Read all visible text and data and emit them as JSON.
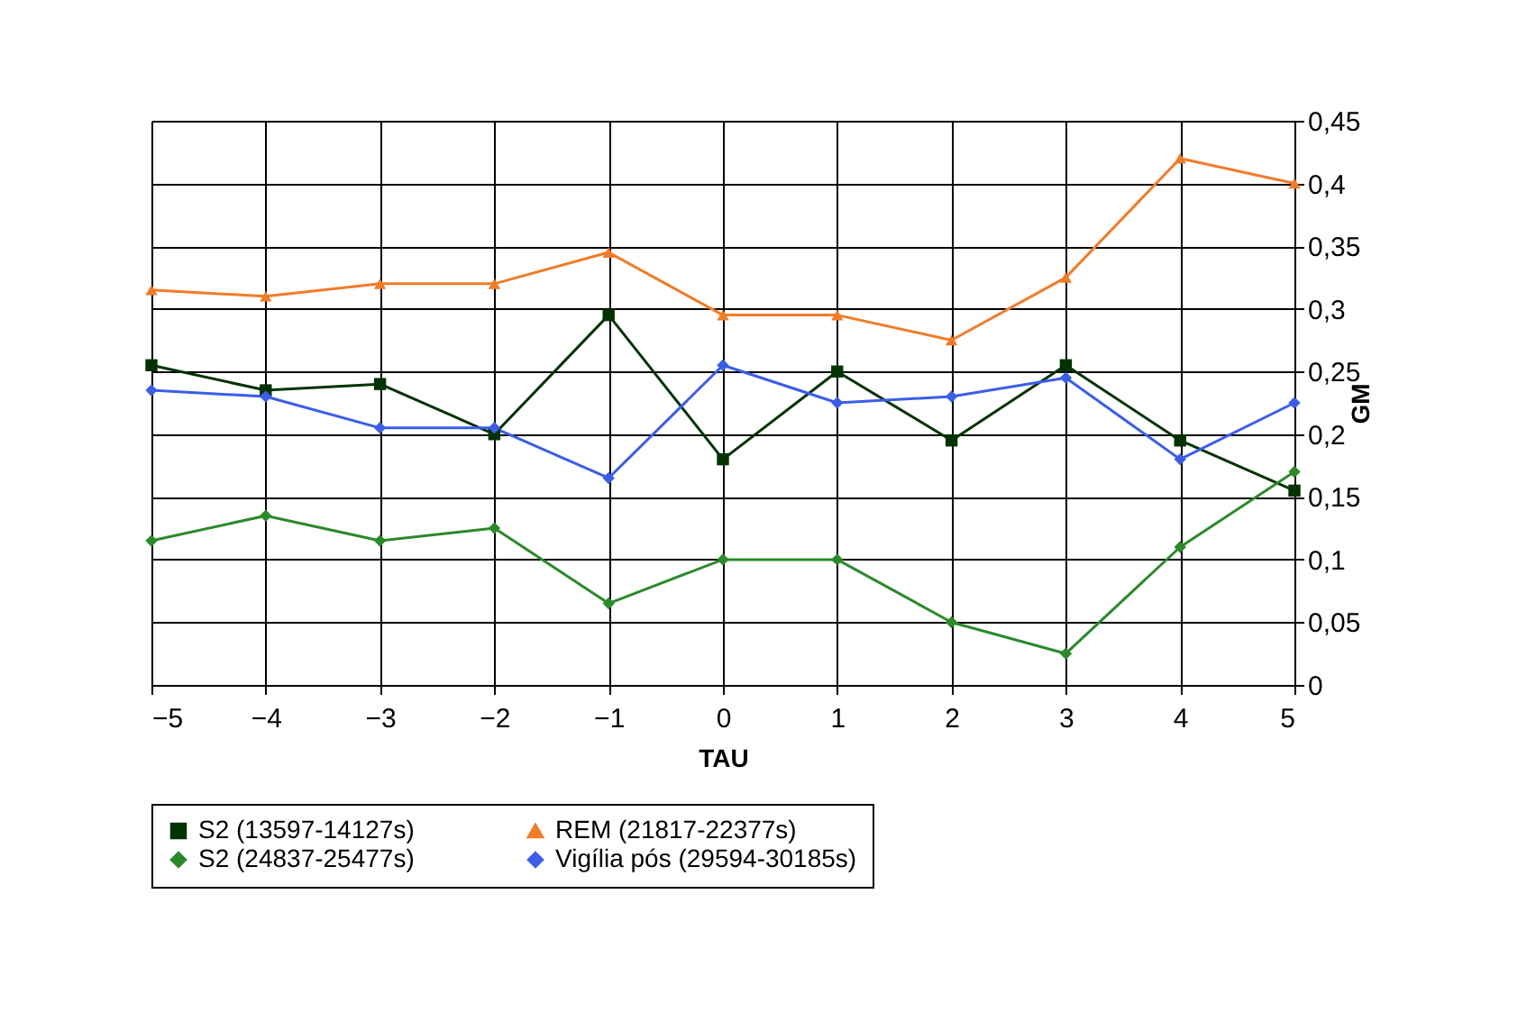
{
  "chart_data": {
    "type": "line",
    "xlabel": "TAU",
    "ylabel": "GM",
    "x": [
      -5,
      -4,
      -3,
      -2,
      -1,
      0,
      1,
      2,
      3,
      4,
      5
    ],
    "xlim": [
      -5,
      5
    ],
    "xticks": [
      -5,
      -4,
      -3,
      -2,
      -1,
      0,
      1,
      2,
      3,
      4,
      5
    ],
    "ylim": [
      0,
      0.45
    ],
    "yticks": [
      {
        "value": 0,
        "label": "0"
      },
      {
        "value": 0.05,
        "label": "0,05"
      },
      {
        "value": 0.1,
        "label": "0,1"
      },
      {
        "value": 0.15,
        "label": "0,15"
      },
      {
        "value": 0.2,
        "label": "0,2"
      },
      {
        "value": 0.25,
        "label": "0,25"
      },
      {
        "value": 0.3,
        "label": "0,3"
      },
      {
        "value": 0.35,
        "label": "0,35"
      },
      {
        "value": 0.4,
        "label": "0,4"
      },
      {
        "value": 0.45,
        "label": "0,45"
      }
    ],
    "grid": true,
    "legend": "bottom",
    "line_style": "solid",
    "series": [
      {
        "name": "S2 (13597-14127s)",
        "color": "#003300",
        "marker": "square",
        "values": [
          0.255,
          0.235,
          0.24,
          0.2,
          0.295,
          0.18,
          0.25,
          0.195,
          0.255,
          0.195,
          0.155
        ]
      },
      {
        "name": "REM (21817-22377s)",
        "color": "#f07c28",
        "marker": "triangle",
        "values": [
          0.315,
          0.31,
          0.32,
          0.32,
          0.345,
          0.295,
          0.295,
          0.275,
          0.325,
          0.42,
          0.4
        ]
      },
      {
        "name": "S2 (24837-25477s)",
        "color": "#2a8a2a",
        "marker": "diamond",
        "values": [
          0.115,
          0.135,
          0.115,
          0.125,
          0.065,
          0.1,
          0.1,
          0.05,
          0.025,
          0.11,
          0.17
        ]
      },
      {
        "name": "Vigília pós (29594-30185s)",
        "color": "#3a5ee8",
        "marker": "diamond",
        "values": [
          0.235,
          0.23,
          0.205,
          0.205,
          0.165,
          0.255,
          0.225,
          0.23,
          0.245,
          0.18,
          0.225
        ]
      }
    ]
  }
}
